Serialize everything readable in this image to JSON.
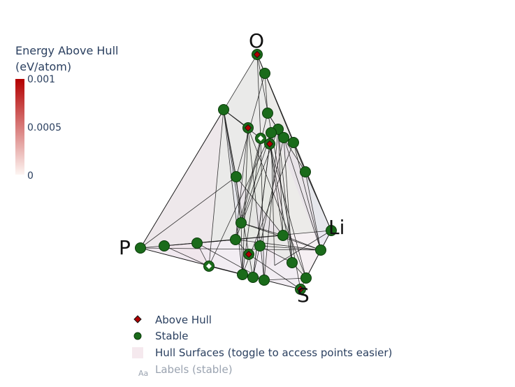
{
  "colorbar": {
    "title_line1": "Energy Above Hull",
    "title_line2": "(eV/atom)",
    "ticks": [
      "0.001",
      "0.0005",
      "0"
    ],
    "color_max": "#b30000",
    "color_min": "#fdf5f2"
  },
  "legend": {
    "above_hull": "Above Hull",
    "stable": "Stable",
    "surfaces": "Hull Surfaces (toggle to access points easier)",
    "labels": "Labels (stable)",
    "labels_icon": "Aa"
  },
  "colors": {
    "stable_fill": "#1a6b1a",
    "stable_edge": "#0a3a0a",
    "above_fill": "#b00000",
    "edge_line": "#111111",
    "surface_tints": [
      "#e7dfe9",
      "#efe3ea",
      "#e3e8e0",
      "#f1e6ec",
      "#e2e4ee"
    ]
  },
  "chart_data": {
    "type": "scatter",
    "title": "",
    "projection": "3d-tetrahedral",
    "vertices": [
      "O",
      "P",
      "Li",
      "S"
    ],
    "series": [
      {
        "name": "Above Hull",
        "marker": "diamond",
        "points": 5
      },
      {
        "name": "Stable",
        "marker": "circle",
        "points": 34
      }
    ],
    "colorscale_range": [
      0,
      0.001
    ]
  }
}
